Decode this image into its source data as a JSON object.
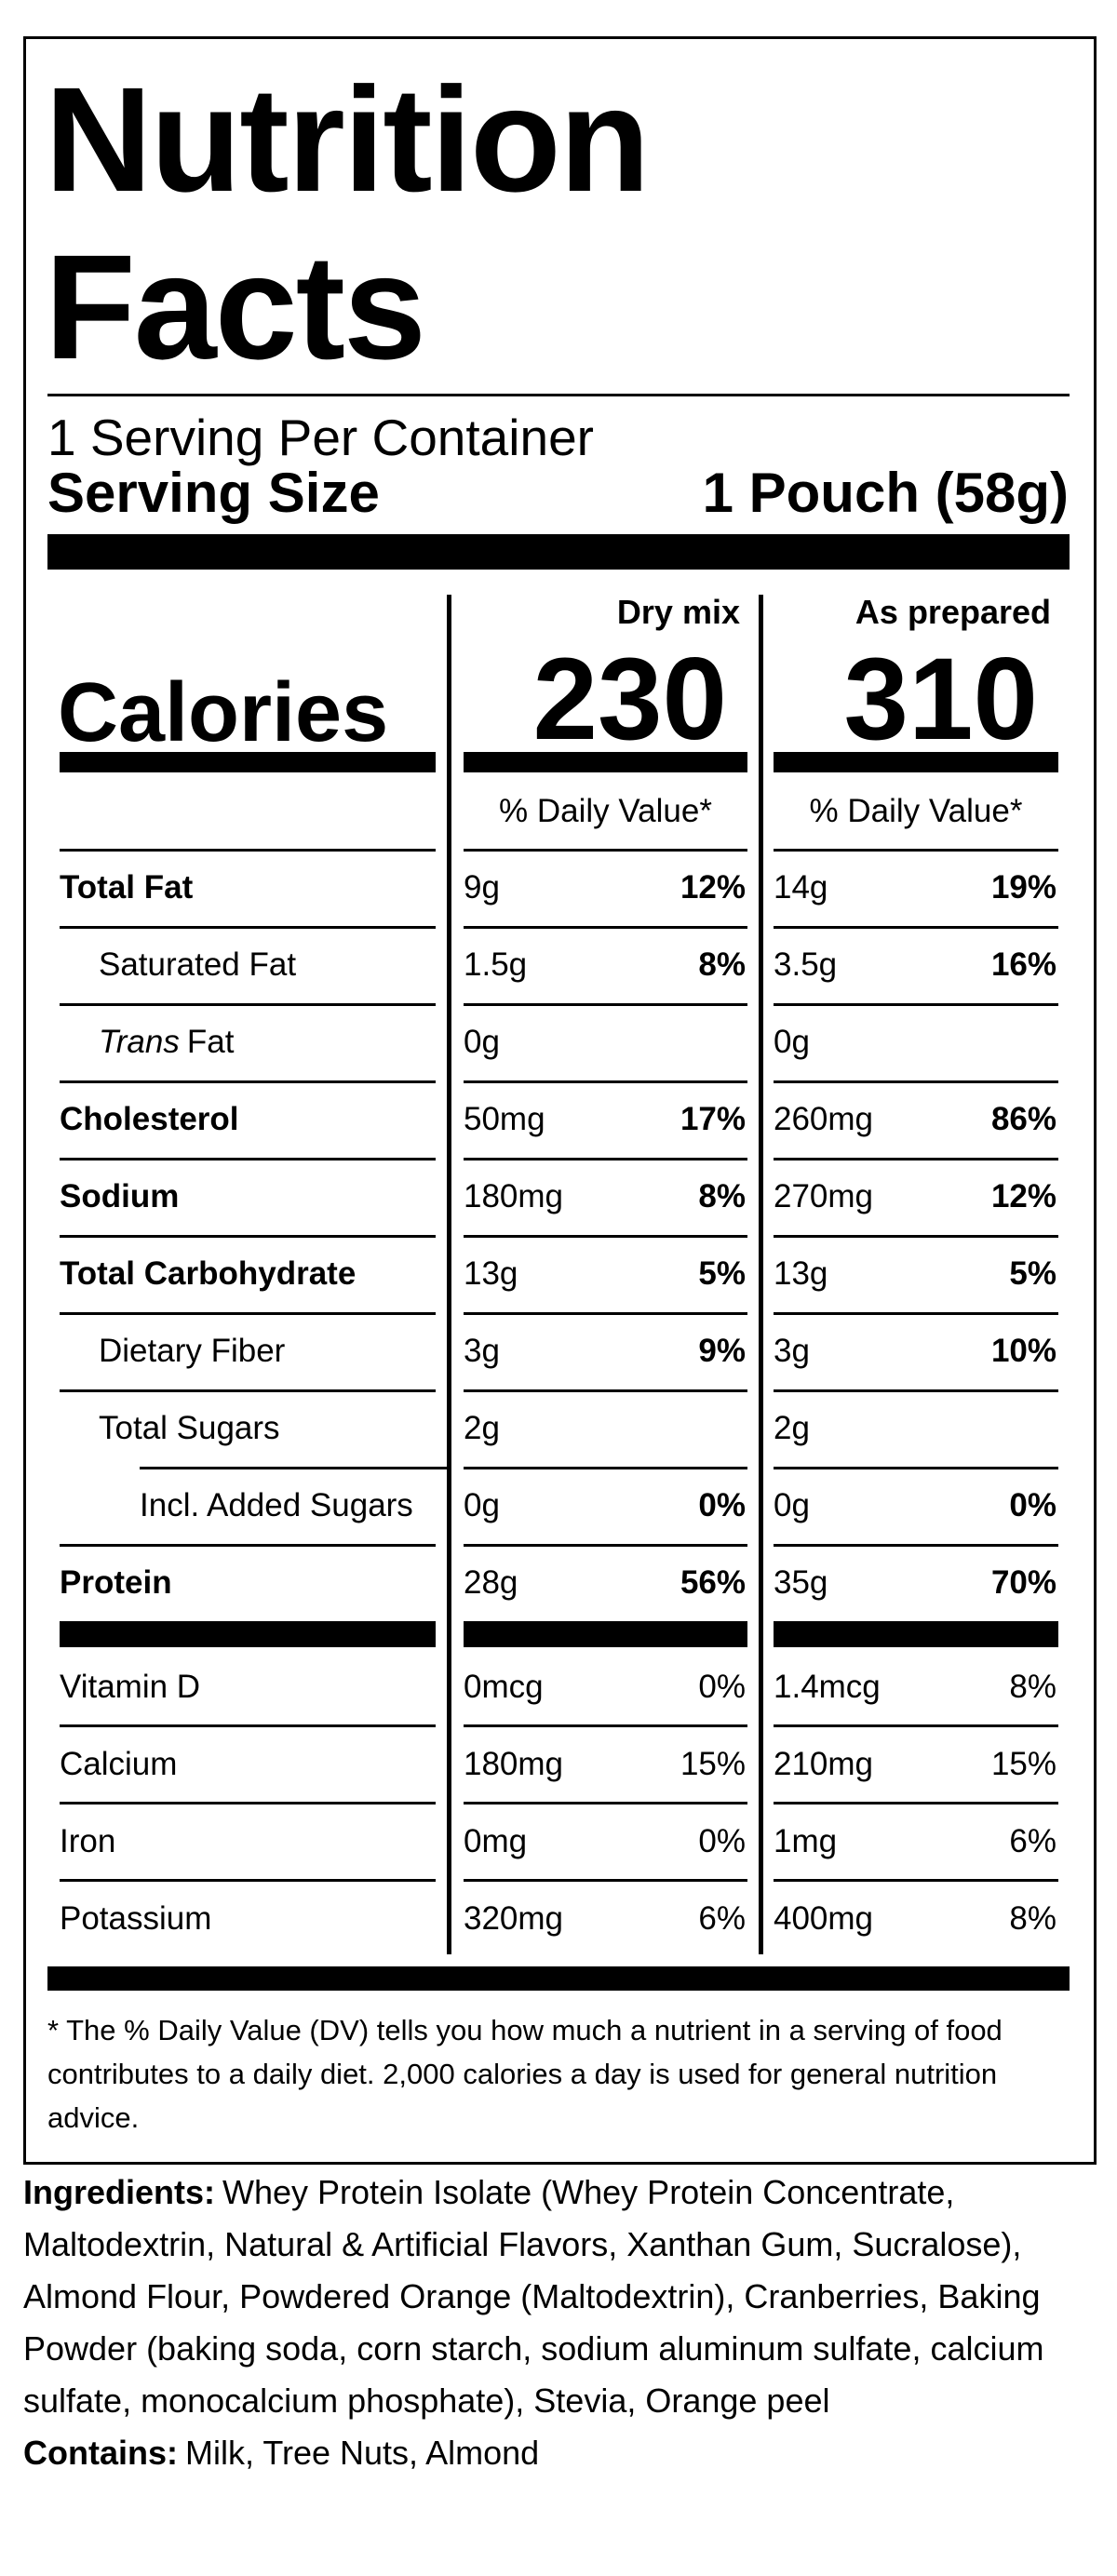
{
  "header": {
    "title": "Nutrition Facts",
    "servings": "1 Serving Per Container",
    "serving_size_label": "Serving Size",
    "serving_size": "1 Pouch (58g)"
  },
  "columns": [
    {
      "heading": "Dry mix",
      "calories": 230,
      "dv_heading": "% Daily Value*"
    },
    {
      "heading": "As prepared",
      "calories": 310,
      "dv_heading": "% Daily Value*"
    }
  ],
  "calories_label": "Calories",
  "nutrients": [
    {
      "name": "Total Fat",
      "dry": [
        "9g",
        "12%"
      ],
      "prepared": [
        "14g",
        "19%"
      ]
    },
    {
      "name": "Saturated Fat",
      "dry": [
        "1.5g",
        "8%"
      ],
      "prepared": [
        "3.5g",
        "16%"
      ]
    },
    {
      "name_italic": "Trans",
      "name": "Fat",
      "dry": [
        "0g"
      ],
      "prepared": [
        "0g"
      ]
    },
    {
      "name": "Cholesterol",
      "dry": [
        "50mg",
        "17%"
      ],
      "prepared": [
        "260mg",
        "86%"
      ]
    },
    {
      "name": "Sodium",
      "dry": [
        "180mg",
        "8%"
      ],
      "prepared": [
        "270mg",
        "12%"
      ]
    },
    {
      "name": "Total Carbohydrate",
      "dry": [
        "13g",
        "5%"
      ],
      "prepared": [
        "13g",
        "5%"
      ]
    },
    {
      "name": "Dietary Fiber",
      "dry": [
        "3g",
        "9%"
      ],
      "prepared": [
        "3g",
        "10%"
      ]
    },
    {
      "name": "Total Sugars",
      "dry": [
        "2g"
      ],
      "prepared": [
        "2g"
      ]
    },
    {
      "name": "Incl. Added Sugars",
      "dry": [
        "0g",
        "0%"
      ],
      "prepared": [
        "0g",
        "0%"
      ]
    },
    {
      "name": "Protein",
      "dry": [
        "28g",
        "56%"
      ],
      "prepared": [
        "35g",
        "70%"
      ]
    }
  ],
  "vitamins": [
    {
      "name": "Vitamin D",
      "dry": [
        "0mcg",
        "0%"
      ],
      "prepared": [
        "1.4mcg",
        "8%"
      ]
    },
    {
      "name": "Calcium",
      "dry": [
        "180mg",
        "15%"
      ],
      "prepared": [
        "210mg",
        "15%"
      ]
    },
    {
      "name": "Iron",
      "dry": [
        "0mg",
        "0%"
      ],
      "prepared": [
        "1mg",
        "6%"
      ]
    },
    {
      "name": "Potassium",
      "dry": [
        "320mg",
        "6%"
      ],
      "prepared": [
        "400mg",
        "8%"
      ]
    }
  ],
  "footnote": "* The % Daily Value (DV) tells you how much a nutrient in a serving of food contributes to a daily diet. 2,000 calories a day is used for general nutrition advice.",
  "ingredients": {
    "label": "Ingredients:",
    "text": "Whey Protein Isolate (Whey Protein Concentrate, Maltodextrin, Natural & Artificial Flavors, Xanthan Gum, Sucralose), Almond Flour, Powdered Orange (Maltodextrin), Cranberries, Baking Powder (baking soda, corn starch, sodium aluminum sulfate, calcium sulfate, monocalcium phosphate), Stevia, Orange peel"
  },
  "contains": {
    "label": "Contains:",
    "text": "Milk, Tree Nuts, Almond"
  }
}
